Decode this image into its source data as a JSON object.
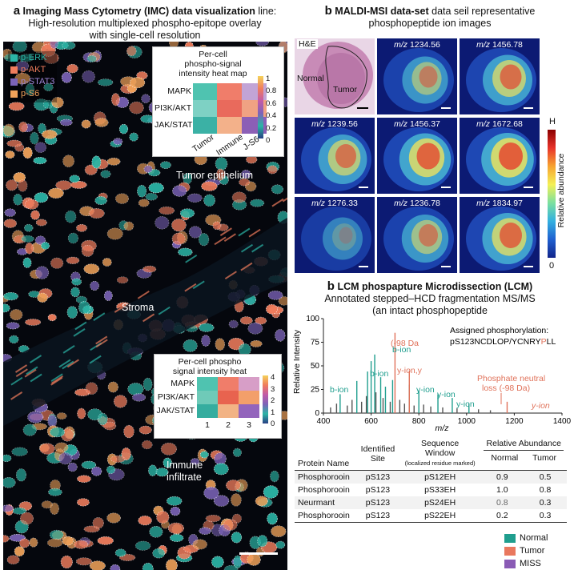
{
  "panel_a": {
    "letter": "a",
    "title_bold": "Imaging Mass Cytometry (IMC) data visualization",
    "title_rest": " line:",
    "subtitle_line1": "High-resolution multiplexed phospho-epitope overlay",
    "subtitle_line2": "with single-cell resolution",
    "legend": [
      {
        "label": "p-ERK",
        "color": "#2bb5a6"
      },
      {
        "label": "p-AKT",
        "color": "#f07d5d"
      },
      {
        "label": "p-STAT3",
        "color": "#7b63b8"
      },
      {
        "label": "p-S6",
        "color": "#f2a35a"
      }
    ],
    "regions": {
      "tumor": "Tumor epithelium",
      "stroma": "Stroma",
      "immune1": "Immune",
      "immune2": "infiltrate"
    },
    "heatmap1": {
      "title1": "Per-cell",
      "title2": "phospho-signal",
      "title3": "intensity heat map",
      "rows": [
        "MAPK",
        "PI3K/AKT",
        "JAK/STAT"
      ],
      "cols": [
        "Tumor",
        "Immune",
        "J-S6"
      ],
      "colorbar_ticks": [
        "1",
        "0.8",
        "0.6",
        "0.4",
        "0.2",
        "0"
      ]
    },
    "heatmap2": {
      "title1": "Per-cell phospho",
      "title2": "signal intensity heat",
      "rows": [
        "MAPK",
        "PI3K/AKT",
        "JAK/STAT"
      ],
      "cols": [
        "1",
        "2",
        "3"
      ],
      "colorbar_ticks": [
        "4",
        "3",
        "2",
        "1",
        "0"
      ]
    }
  },
  "panel_b_top": {
    "letter": "b",
    "title_bold": "MALDI-MSI data-set",
    "title_rest": " data seil representative",
    "subtitle": "phosphopeptide ion images",
    "he": {
      "label": "H&E",
      "normal": "Normal",
      "tumor": "Tumor"
    },
    "tiles": [
      {
        "prefix": "m/z",
        "value": "1234.56"
      },
      {
        "prefix": "m/z",
        "value": "1456.78"
      },
      {
        "prefix": "m/z",
        "value": "1239.56"
      },
      {
        "prefix": "m/z",
        "value": "1456.37"
      },
      {
        "prefix": "m/z",
        "value": "1672.68"
      },
      {
        "prefix": "m/z",
        "value": "1276.33"
      },
      {
        "prefix": "m/z",
        "value": "1236.78"
      },
      {
        "prefix": "m/z",
        "value": "1834.97"
      }
    ],
    "colorbar": {
      "high": "H",
      "low": "0",
      "label": "Relative abundance"
    }
  },
  "panel_b_bottom": {
    "letter": "b",
    "title_bold": "LCM phospapture Microdissection (LCM)",
    "subtitle1": "Annotated stepped–HCD fragmentation MS/MS",
    "subtitle2": "(an intact phosphopeptide",
    "assigned_label": "Assigned phosphorylation:",
    "sequence_pre": "pS123NCDLOP/YCNRY",
    "sequence_mark": "P",
    "sequence_post": "LL",
    "annotations": {
      "da98": "(-98 Da",
      "yion_y": "y-ion,y",
      "neutral1": "Phosphate neutral",
      "neutral2": "loss (-98 Da)",
      "bion": "b-ion",
      "yion": "y-ion"
    }
  },
  "chart_data": {
    "type": "bar",
    "title": "",
    "xlabel": "m/z",
    "ylabel": "Relative Intensity",
    "xlim": [
      400,
      1400
    ],
    "ylim": [
      0,
      100
    ],
    "xticks": [
      "400",
      "600",
      "800",
      "1000",
      "1200",
      "1400"
    ],
    "yticks": [
      "0",
      "25",
      "50",
      "75",
      "100"
    ],
    "series": [
      {
        "name": "b-ion",
        "color": "#1f9e8e",
        "x": [
          470,
          540,
          585,
          600,
          615,
          640,
          660
        ],
        "y": [
          20,
          34,
          44,
          55,
          62,
          38,
          28
        ]
      },
      {
        "name": "y-ion",
        "color": "#1f9e8e",
        "x": [
          690,
          760,
          800,
          880,
          940,
          1010
        ],
        "y": [
          35,
          30,
          24,
          20,
          16,
          10
        ]
      },
      {
        "name": "neutral-loss",
        "color": "#e0725a",
        "x": [
          700,
          760,
          1170
        ],
        "y": [
          85,
          45,
          12
        ]
      },
      {
        "name": "other",
        "color": "#555555",
        "x": [
          430,
          455,
          500,
          520,
          560,
          580,
          620,
          650,
          680,
          720,
          740,
          780,
          820,
          850,
          900,
          960,
          1050,
          1100
        ],
        "y": [
          6,
          10,
          8,
          14,
          12,
          18,
          22,
          16,
          12,
          14,
          10,
          8,
          9,
          7,
          6,
          5,
          4,
          3
        ]
      }
    ]
  },
  "table": {
    "headers": {
      "protein": "Protein Name",
      "site1": "Identified",
      "site2": "Site",
      "seq1": "Sequence",
      "seq2": "Window",
      "seq3": "(localized residue marked)",
      "rel": "Relative Abundance",
      "normal": "Normal",
      "tumor": "Tumor"
    },
    "rows": [
      {
        "protein": "Phosphorooin",
        "site": "pS123",
        "seq": "pS12EH",
        "normal": "0.9",
        "tumor": "0.5"
      },
      {
        "protein": "Phosphorooin",
        "site": "pS123",
        "seq": "pS33EH",
        "normal": "1.0",
        "tumor": "0.8"
      },
      {
        "protein": "Neurmant",
        "site": "pS123",
        "seq": "pS24EH",
        "normal": "0.8",
        "tumor": "0.3"
      },
      {
        "protein": "Phosphorooin",
        "site": "pS123",
        "seq": "pS22EH",
        "normal": "0.2",
        "tumor": "0.3"
      }
    ],
    "legend": [
      {
        "label": "Normal",
        "color": "#1f9e8e"
      },
      {
        "label": "Tumor",
        "color": "#e9785e"
      },
      {
        "label": "MISS",
        "color": "#8a5bb5"
      }
    ]
  }
}
